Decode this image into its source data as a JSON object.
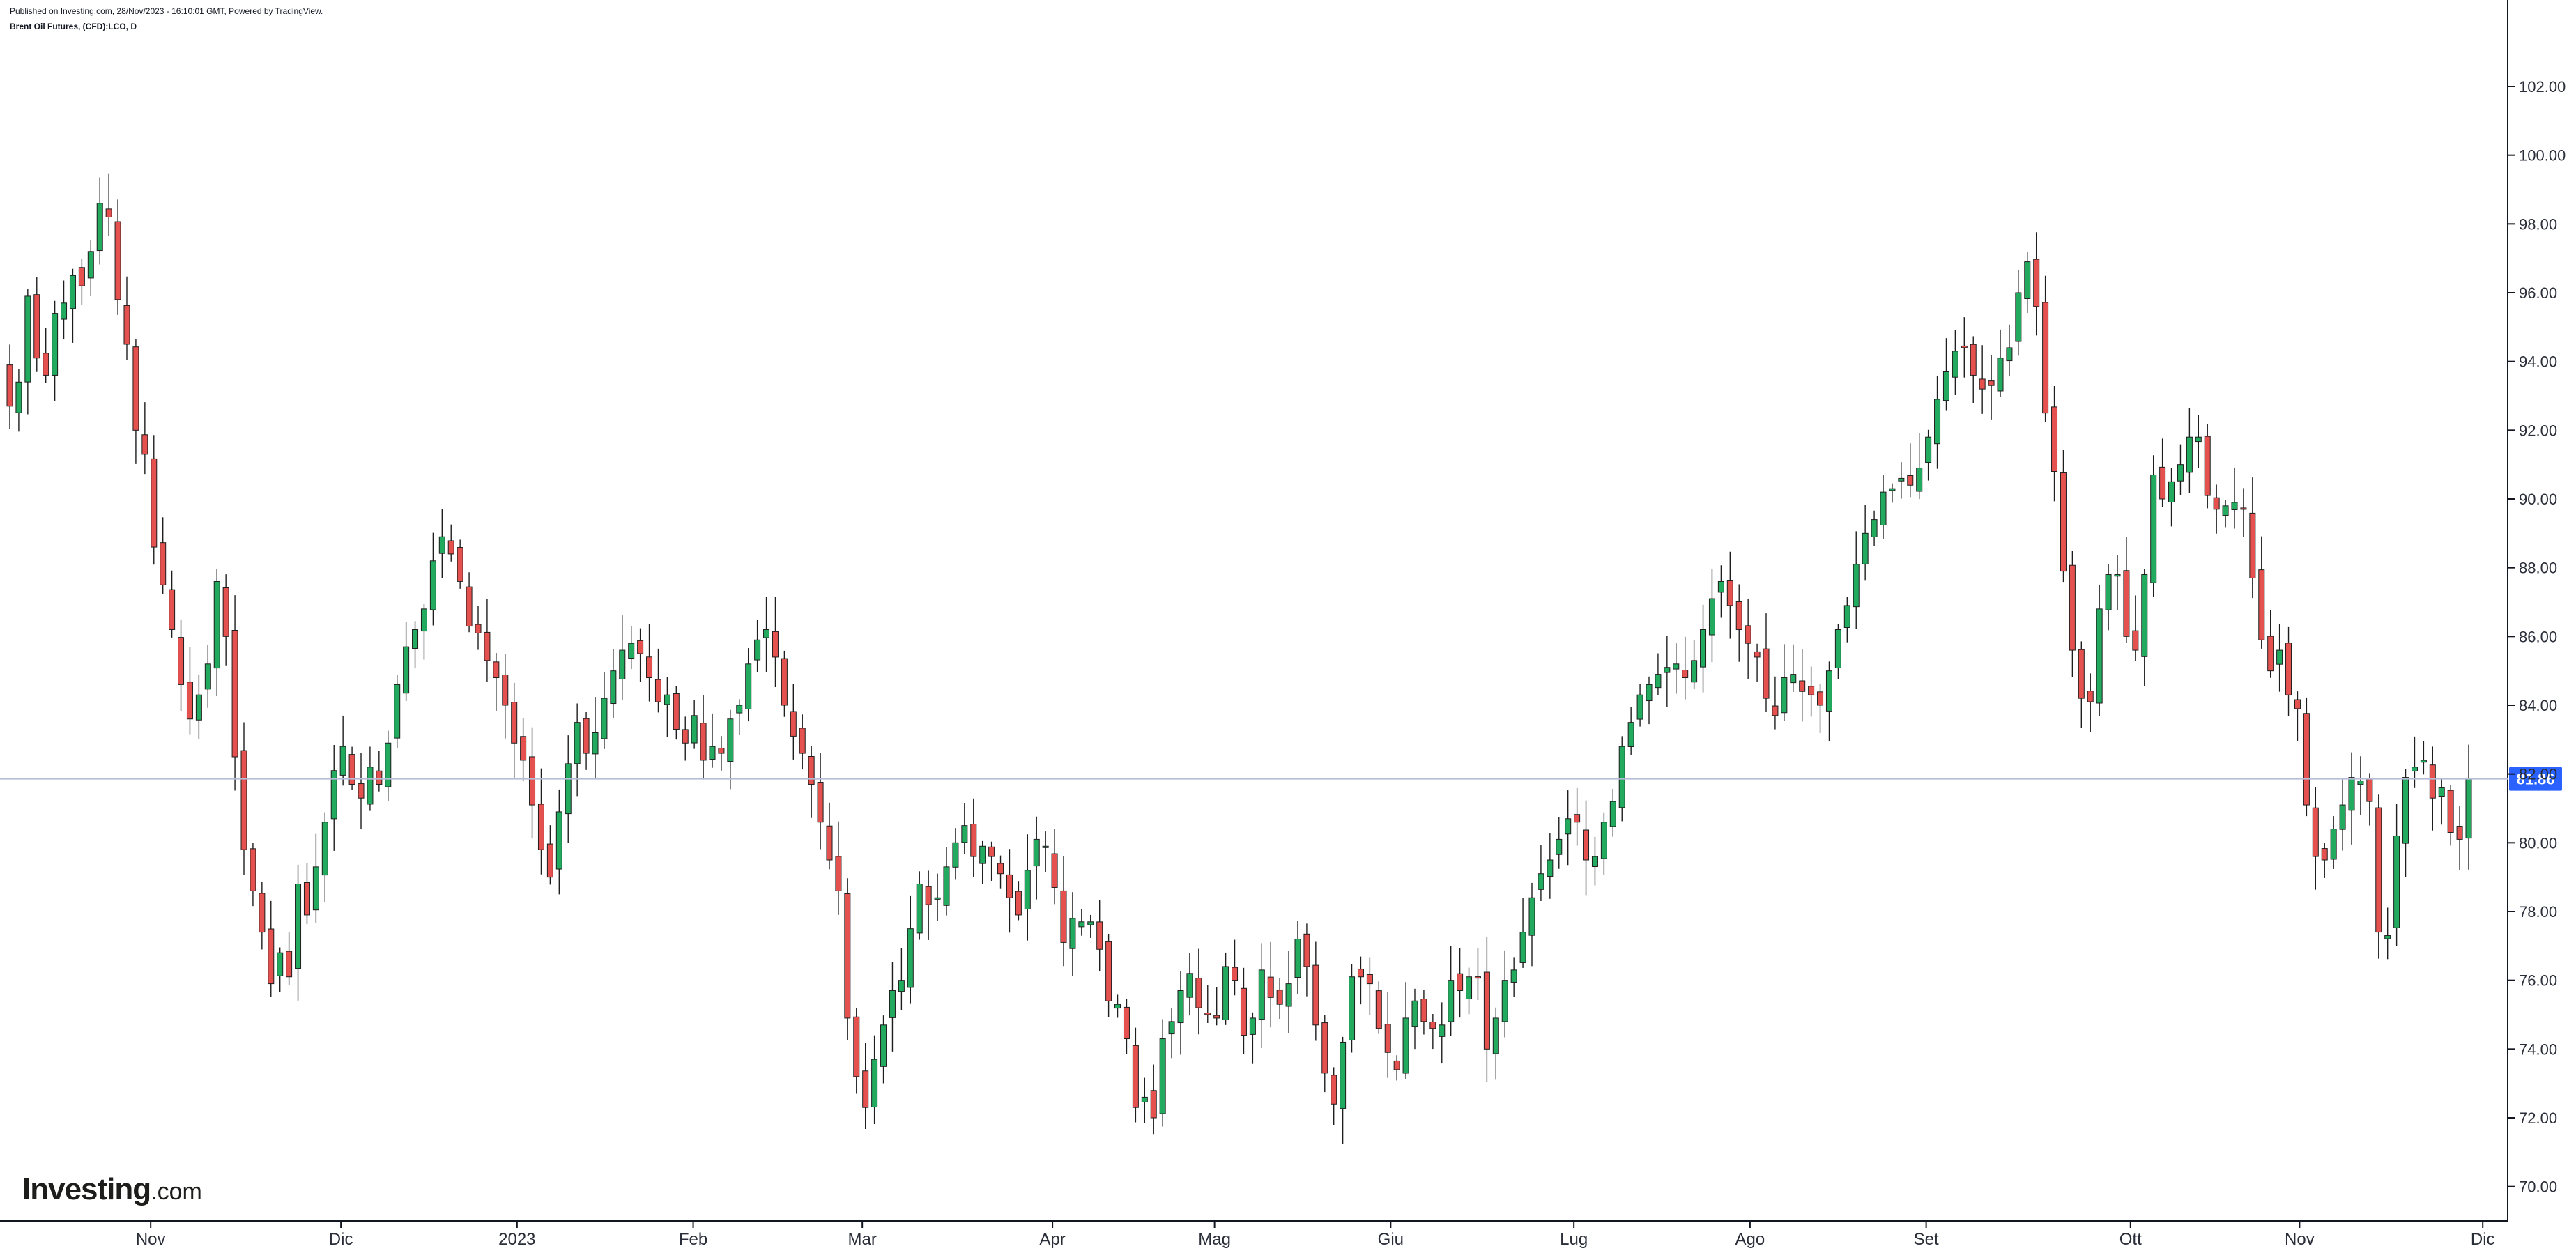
{
  "header": {
    "published": "Published on Investing.com, 28/Nov/2023 - 16:10:01 GMT, Powered by TradingView.",
    "symbol": "Brent Oil Futures, (CFD):LCO, D"
  },
  "logo": {
    "brand": "Investing",
    "tld": ".com"
  },
  "colors": {
    "up": "#22ab5f",
    "down": "#e5514f",
    "wick": "#1e1e1e",
    "price_line": "#b7bdd8",
    "price_badge": "#2962ff"
  },
  "chart_data": {
    "type": "candlestick",
    "title": "Brent Oil Futures, (CFD):LCO, D",
    "ylim": [
      69,
      103.5
    ],
    "y_ticks": [
      "70.00",
      "72.00",
      "74.00",
      "76.00",
      "78.00",
      "80.00",
      "82.00",
      "84.00",
      "86.00",
      "88.00",
      "90.00",
      "92.00",
      "94.00",
      "96.00",
      "98.00",
      "100.00",
      "102.00"
    ],
    "x_ticks": [
      "Nov",
      "Dic",
      "2023",
      "Feb",
      "Mar",
      "Apr",
      "Mag",
      "Giu",
      "Lug",
      "Ago",
      "Set",
      "Ott",
      "Nov",
      "Dic"
    ],
    "last_price": 81.86,
    "last_price_label": "81.86",
    "closes": [
      92.7,
      93.4,
      95.9,
      94.1,
      93.6,
      95.4,
      95.7,
      96.5,
      96.2,
      97.2,
      98.6,
      98.2,
      95.8,
      94.5,
      92.0,
      91.3,
      88.6,
      87.5,
      86.2,
      84.6,
      83.6,
      84.3,
      85.2,
      87.6,
      86.0,
      82.5,
      79.8,
      78.6,
      77.4,
      75.9,
      76.8,
      76.1,
      78.8,
      77.9,
      79.3,
      80.6,
      82.1,
      82.8,
      81.7,
      81.3,
      82.2,
      81.7,
      82.9,
      84.6,
      85.7,
      86.2,
      86.8,
      88.2,
      88.9,
      88.4,
      87.6,
      86.3,
      86.1,
      85.3,
      84.8,
      84.0,
      82.9,
      82.4,
      81.1,
      79.8,
      79.0,
      80.9,
      82.3,
      83.5,
      82.6,
      83.2,
      84.2,
      85.0,
      85.6,
      85.8,
      85.5,
      84.8,
      84.1,
      84.3,
      83.3,
      82.9,
      83.7,
      82.4,
      82.8,
      82.6,
      83.6,
      84.0,
      85.2,
      85.9,
      86.2,
      85.4,
      84.0,
      83.1,
      82.6,
      81.7,
      80.6,
      79.5,
      78.6,
      74.9,
      73.2,
      72.3,
      73.7,
      74.7,
      75.7,
      76.0,
      77.5,
      78.8,
      78.2,
      78.4,
      79.3,
      80.0,
      80.5,
      79.6,
      79.9,
      79.6,
      79.1,
      78.4,
      77.9,
      79.2,
      80.1,
      79.9,
      78.7,
      77.1,
      77.8,
      77.7,
      77.7,
      76.9,
      75.4,
      75.3,
      74.3,
      72.3,
      72.6,
      72.0,
      74.3,
      74.8,
      75.7,
      76.2,
      75.2,
      75.0,
      74.9,
      76.4,
      76.0,
      74.4,
      74.9,
      76.3,
      75.5,
      75.3,
      75.9,
      77.2,
      76.4,
      74.7,
      73.3,
      72.4,
      74.2,
      76.1,
      76.1,
      75.9,
      74.6,
      73.9,
      73.4,
      74.9,
      75.4,
      74.8,
      74.6,
      74.7,
      76.0,
      75.7,
      76.1,
      76.1,
      74.0,
      74.9,
      76.0,
      76.3,
      77.4,
      78.4,
      79.1,
      79.5,
      80.1,
      80.7,
      80.6,
      79.5,
      79.6,
      80.6,
      81.2,
      82.8,
      83.5,
      84.3,
      84.6,
      84.9,
      85.1,
      85.2,
      84.8,
      85.3,
      86.2,
      87.1,
      87.6,
      86.9,
      86.2,
      85.8,
      85.4,
      84.2,
      83.7,
      84.8,
      84.9,
      84.4,
      84.3,
      84.0,
      85.0,
      86.2,
      86.9,
      88.1,
      89.0,
      89.4,
      90.2,
      90.3,
      90.6,
      90.4,
      90.9,
      91.8,
      92.9,
      93.7,
      94.3,
      94.4,
      93.6,
      93.2,
      93.3,
      94.1,
      94.4,
      96.0,
      96.9,
      95.6,
      92.5,
      90.8,
      87.9,
      85.6,
      84.2,
      84.1,
      86.8,
      87.8,
      87.8,
      86.0,
      85.6,
      87.8,
      90.7,
      90.0,
      90.5,
      91.0,
      91.8,
      91.8,
      90.1,
      89.7,
      89.8,
      89.9,
      89.7,
      87.7,
      85.9,
      85.0,
      85.6,
      84.3,
      83.9,
      81.1,
      79.6,
      79.5,
      80.4,
      81.1,
      81.9,
      81.8,
      81.2,
      77.4,
      77.3,
      80.2,
      81.9,
      82.2,
      82.4,
      81.3,
      81.6,
      80.3,
      80.1,
      81.86
    ],
    "source_notes": ""
  }
}
